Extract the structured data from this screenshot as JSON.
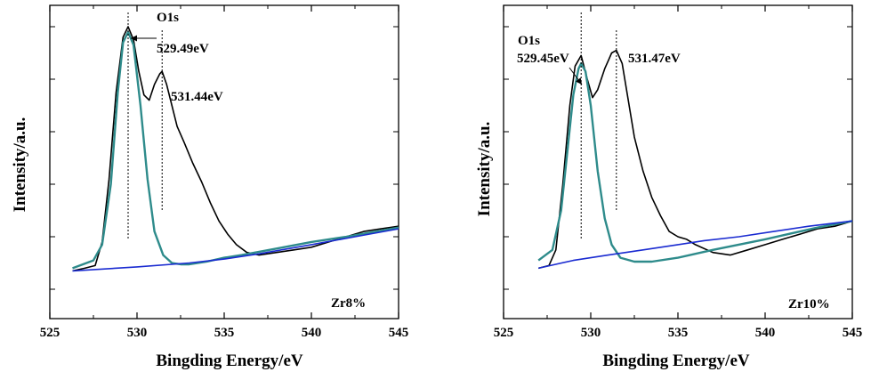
{
  "figure": {
    "panels": [
      {
        "xlabel": "Bingding Energy/eV",
        "ylabel": "Intensity/a.u.",
        "sample_label": "Zr8%",
        "peak_label": "O1s",
        "annotation_1": "529.49eV",
        "annotation_2": "531.44eV",
        "peak_lines": [
          529.49,
          531.44
        ],
        "colors": {
          "measured": "#000000",
          "fit": "#2e8b8b",
          "background": "#1a2bd1"
        }
      },
      {
        "xlabel": "Bingding Energy/eV",
        "ylabel": "Intensity/a.u.",
        "sample_label": "Zr10%",
        "peak_label": "O1s",
        "annotation_1": "529.45eV",
        "annotation_2": "531.47eV",
        "peak_lines": [
          529.45,
          531.47
        ],
        "colors": {
          "measured": "#000000",
          "fit": "#2e8b8b",
          "background": "#1a2bd1"
        }
      }
    ]
  },
  "chart_data": [
    {
      "type": "line",
      "xlabel": "Bingding Energy/eV",
      "ylabel": "Intensity/a.u.",
      "xlim": [
        525,
        545
      ],
      "ylim": [
        0,
        100
      ],
      "xticks": [
        525,
        530,
        535,
        540,
        545
      ],
      "y_tick_labels_shown": false,
      "annotations": [
        "O1s",
        "529.49eV",
        "531.44eV",
        "Zr8%"
      ],
      "series": [
        {
          "x": [
            526.3,
            527.0,
            527.6,
            528.0,
            528.4,
            528.8,
            529.2,
            529.49,
            529.8,
            530.1,
            530.4,
            530.7,
            531.0,
            531.3,
            531.44,
            531.7,
            532.0,
            532.3,
            532.7,
            533.2,
            533.7,
            534.2,
            534.7,
            535.2,
            535.7,
            536.3,
            537.0,
            538.0,
            539.0,
            540.0,
            541.0,
            542.0,
            543.0,
            544.0,
            545.0
          ],
          "values": [
            7,
            8,
            9,
            18,
            42,
            75,
            96,
            100,
            95,
            83,
            74,
            72,
            78,
            82,
            83,
            78,
            70,
            62,
            56,
            48,
            41,
            33,
            26,
            21,
            17,
            14,
            13,
            14,
            15,
            16,
            18,
            20,
            22,
            23,
            24
          ]
        },
        {
          "x": [
            526.3,
            527.5,
            528.0,
            528.5,
            528.9,
            529.2,
            529.49,
            529.8,
            530.2,
            530.6,
            531.0,
            531.5,
            532.0,
            532.5,
            533.0,
            534.0,
            535.0,
            536.0,
            538.0,
            540.0,
            542.0,
            545.0
          ],
          "values": [
            8,
            11,
            17,
            40,
            75,
            94,
            98,
            93,
            70,
            42,
            22,
            13,
            10,
            9.5,
            9.5,
            10.5,
            12,
            13,
            15.5,
            18,
            20,
            23.5
          ]
        },
        {
          "x": [
            526.3,
            530.0,
            533.0,
            535.0,
            537.0,
            540.0,
            542.5,
            545.0
          ],
          "values": [
            7,
            8.5,
            10,
            11.5,
            13.5,
            17,
            20,
            23
          ]
        }
      ]
    },
    {
      "type": "line",
      "xlabel": "Bingding Energy/eV",
      "ylabel": "Intensity/a.u.",
      "xlim": [
        525,
        545
      ],
      "ylim": [
        0,
        100
      ],
      "xticks": [
        525,
        530,
        535,
        540,
        545
      ],
      "y_tick_labels_shown": false,
      "annotations": [
        "O1s",
        "529.45eV",
        "531.47eV",
        "Zr10%"
      ],
      "series": [
        {
          "x": [
            527.0,
            527.6,
            528.0,
            528.4,
            528.8,
            529.1,
            529.45,
            529.8,
            530.1,
            530.4,
            530.8,
            531.0,
            531.2,
            531.47,
            531.8,
            532.1,
            532.5,
            533.0,
            533.5,
            534.0,
            534.5,
            535.0,
            535.5,
            536.0,
            537.0,
            538.0,
            539.0,
            540.0,
            541.0,
            542.0,
            543.0,
            544.0,
            545.0
          ],
          "values": [
            8,
            9,
            15,
            40,
            70,
            85,
            89,
            80,
            73,
            76,
            84,
            87,
            90,
            91,
            86,
            74,
            58,
            45,
            35,
            28,
            22,
            20,
            19,
            17,
            14,
            13,
            15,
            17,
            19,
            21,
            23,
            24,
            26
          ]
        },
        {
          "x": [
            527.0,
            527.8,
            528.3,
            528.7,
            529.0,
            529.3,
            529.45,
            529.7,
            530.0,
            530.4,
            530.8,
            531.2,
            531.7,
            532.5,
            533.5,
            535.0,
            537.0,
            540.0,
            543.0,
            545.0
          ],
          "values": [
            11,
            15,
            30,
            55,
            74,
            84,
            86,
            83,
            70,
            45,
            27,
            17,
            12,
            10.5,
            10.5,
            12,
            15,
            19,
            23.5,
            26
          ]
        },
        {
          "x": [
            527.0,
            529.0,
            531.0,
            533.0,
            535.0,
            536.5,
            538.5,
            540.5,
            542.5,
            545.0
          ],
          "values": [
            8,
            11,
            13,
            15,
            17,
            18.5,
            20,
            22,
            24,
            26
          ]
        }
      ]
    }
  ]
}
